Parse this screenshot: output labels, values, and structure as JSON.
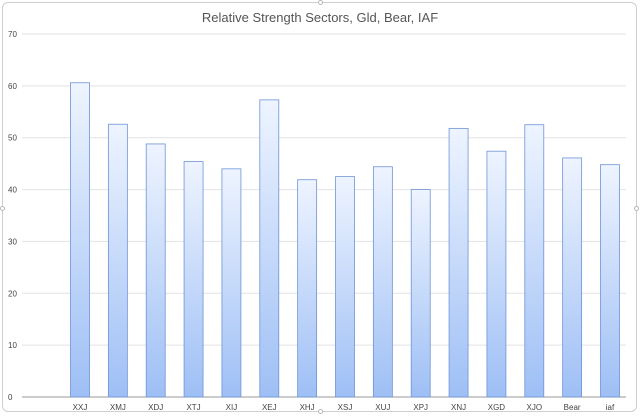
{
  "chart_data": {
    "type": "bar",
    "title": "Relative Strength Sectors, Gld, Bear, IAF",
    "xlabel": "",
    "ylabel": "",
    "categories": [
      "XXJ",
      "XMJ",
      "XDJ",
      "XTJ",
      "XIJ",
      "XEJ",
      "XHJ",
      "XSJ",
      "XUJ",
      "XPJ",
      "XNJ",
      "XGD",
      "XJO",
      "Bear",
      "iaf"
    ],
    "values": [
      60.6,
      52.6,
      48.8,
      45.4,
      44.0,
      57.3,
      41.9,
      42.5,
      44.4,
      40.0,
      51.8,
      47.4,
      52.5,
      46.1,
      44.8
    ],
    "ylim": [
      0,
      70
    ],
    "yticks": [
      0,
      10,
      20,
      30,
      40,
      50,
      60,
      70
    ],
    "grid": true,
    "legend": "none",
    "colors": {
      "bar_top": "#eef4ff",
      "bar_bottom": "#9ebff5",
      "bar_stroke": "#6f93d6",
      "grid": "#e2e2e2",
      "axis": "#999999"
    }
  }
}
